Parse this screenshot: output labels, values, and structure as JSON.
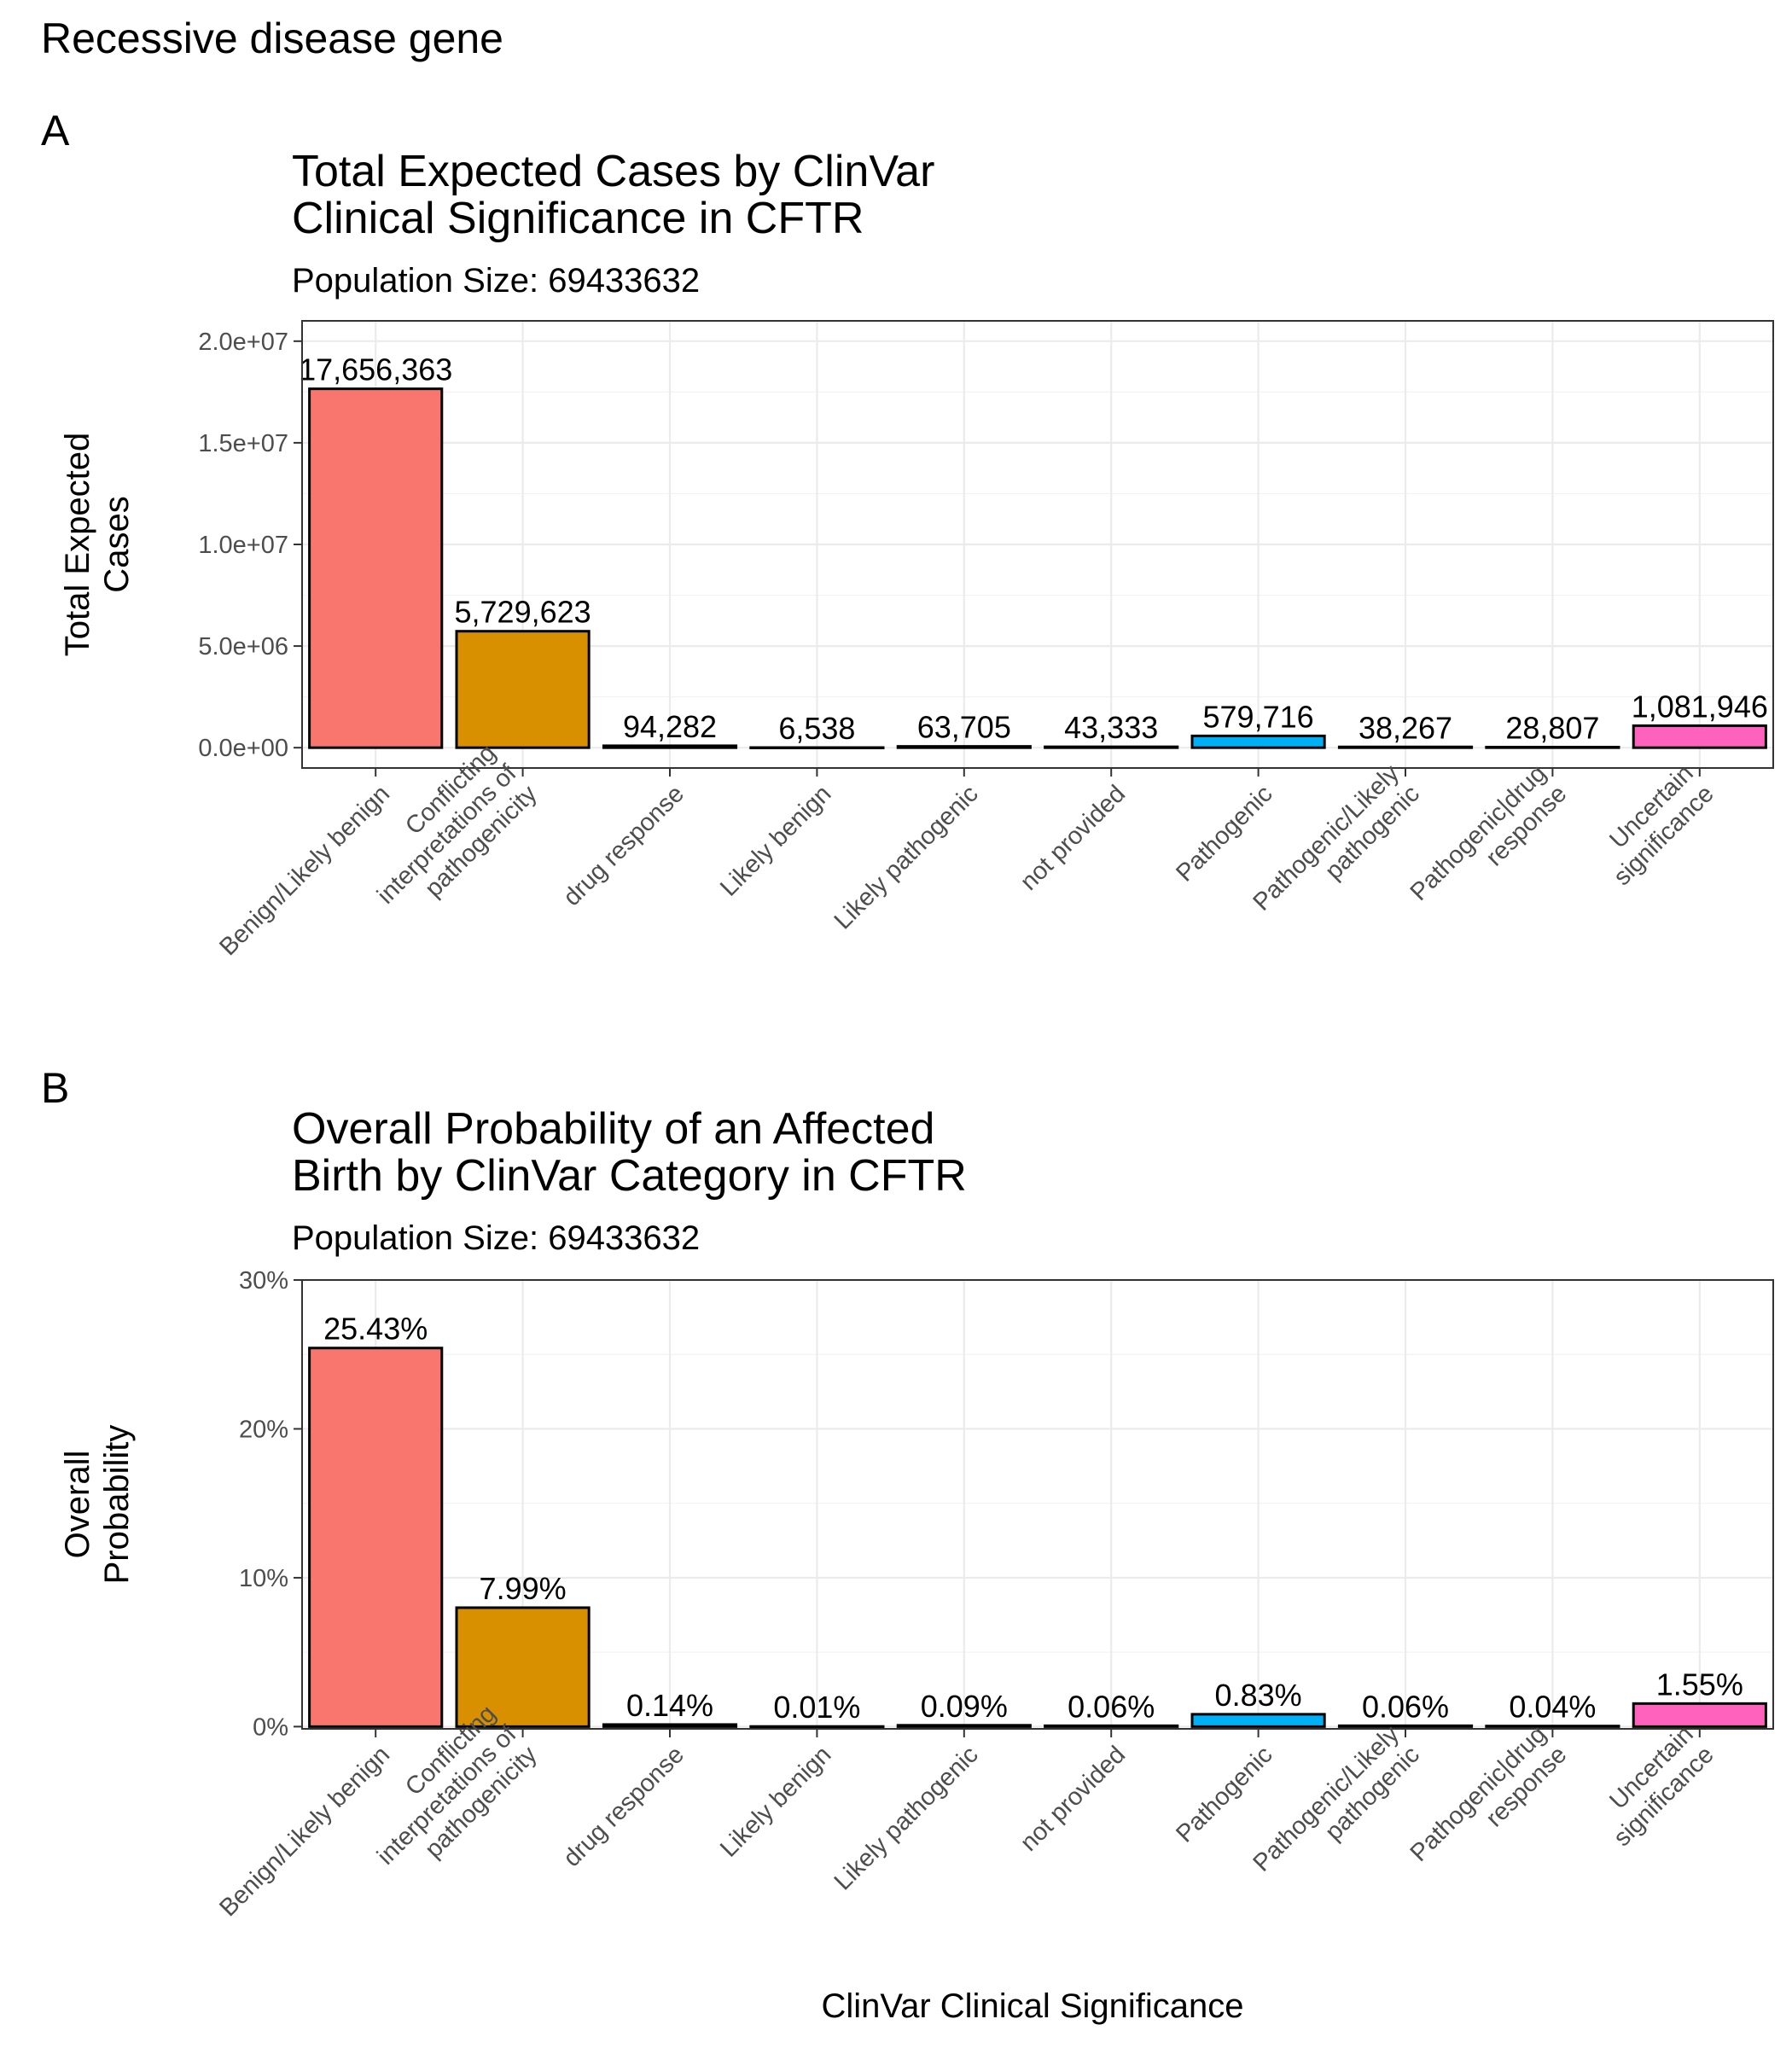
{
  "figure": {
    "main_title": "Recessive disease gene",
    "x_axis_label": "ClinVar Clinical Significance"
  },
  "chart_data": [
    {
      "type": "bar",
      "panel_tag": "A",
      "title_lines": [
        "Total Expected Cases by ClinVar",
        "Clinical Significance in CFTR"
      ],
      "subtitle": "Population Size: 69433632",
      "ylabel_lines": [
        "Total Expected",
        "Cases"
      ],
      "xlabel": "",
      "ylim": [
        -1000000,
        21000000
      ],
      "y_ticks": [
        0,
        5000000,
        10000000,
        15000000,
        20000000
      ],
      "y_tick_labels": [
        "0.0e+00",
        "5.0e+06",
        "1.0e+07",
        "1.5e+07",
        "2.0e+07"
      ],
      "grid": true,
      "categories": [
        [
          "Benign/Likely benign"
        ],
        [
          "Conflicting",
          "interpretations of",
          "pathogenicity"
        ],
        [
          "drug response"
        ],
        [
          "Likely benign"
        ],
        [
          "Likely pathogenic"
        ],
        [
          "not provided"
        ],
        [
          "Pathogenic"
        ],
        [
          "Pathogenic/Likely",
          "pathogenic"
        ],
        [
          "Pathogenic|drug",
          "response"
        ],
        [
          "Uncertain",
          "significance"
        ]
      ],
      "values": [
        17656363,
        5729623,
        94282,
        6538,
        63705,
        43333,
        579716,
        38267,
        28807,
        1081946
      ],
      "value_labels": [
        "17,656,363",
        "5,729,623",
        "94,282",
        "6,538",
        "63,705",
        "43,333",
        "579,716",
        "38,267",
        "28,807",
        "1,081,946"
      ],
      "colors": [
        "#F8766D",
        "#D89000",
        "#A3A500",
        "#39B600",
        "#00BF7D",
        "#00BFC4",
        "#00B0F6",
        "#9590FF",
        "#E76BF3",
        "#FF62BC"
      ]
    },
    {
      "type": "bar",
      "panel_tag": "B",
      "title_lines": [
        "Overall Probability of an Affected",
        "Birth by ClinVar Category in CFTR"
      ],
      "subtitle": "Population Size: 69433632",
      "ylabel_lines": [
        "Overall",
        "Probability"
      ],
      "xlabel": "",
      "ylim": [
        -0.0015,
        0.3
      ],
      "y_ticks": [
        0,
        0.1,
        0.2,
        0.3
      ],
      "y_tick_labels": [
        "0%",
        "10%",
        "20%",
        "30%"
      ],
      "grid": true,
      "categories": [
        [
          "Benign/Likely benign"
        ],
        [
          "Conflicting",
          "interpretations of",
          "pathogenicity"
        ],
        [
          "drug response"
        ],
        [
          "Likely benign"
        ],
        [
          "Likely pathogenic"
        ],
        [
          "not provided"
        ],
        [
          "Pathogenic"
        ],
        [
          "Pathogenic/Likely",
          "pathogenic"
        ],
        [
          "Pathogenic|drug",
          "response"
        ],
        [
          "Uncertain",
          "significance"
        ]
      ],
      "values": [
        0.2543,
        0.0799,
        0.0014,
        0.0001,
        0.0009,
        0.0006,
        0.0083,
        0.0006,
        0.0004,
        0.0155
      ],
      "value_labels": [
        "25.43%",
        "7.99%",
        "0.14%",
        "0.01%",
        "0.09%",
        "0.06%",
        "0.83%",
        "0.06%",
        "0.04%",
        "1.55%"
      ],
      "colors": [
        "#F8766D",
        "#D89000",
        "#A3A500",
        "#39B600",
        "#00BF7D",
        "#00BFC4",
        "#00B0F6",
        "#9590FF",
        "#E76BF3",
        "#FF62BC"
      ]
    }
  ]
}
